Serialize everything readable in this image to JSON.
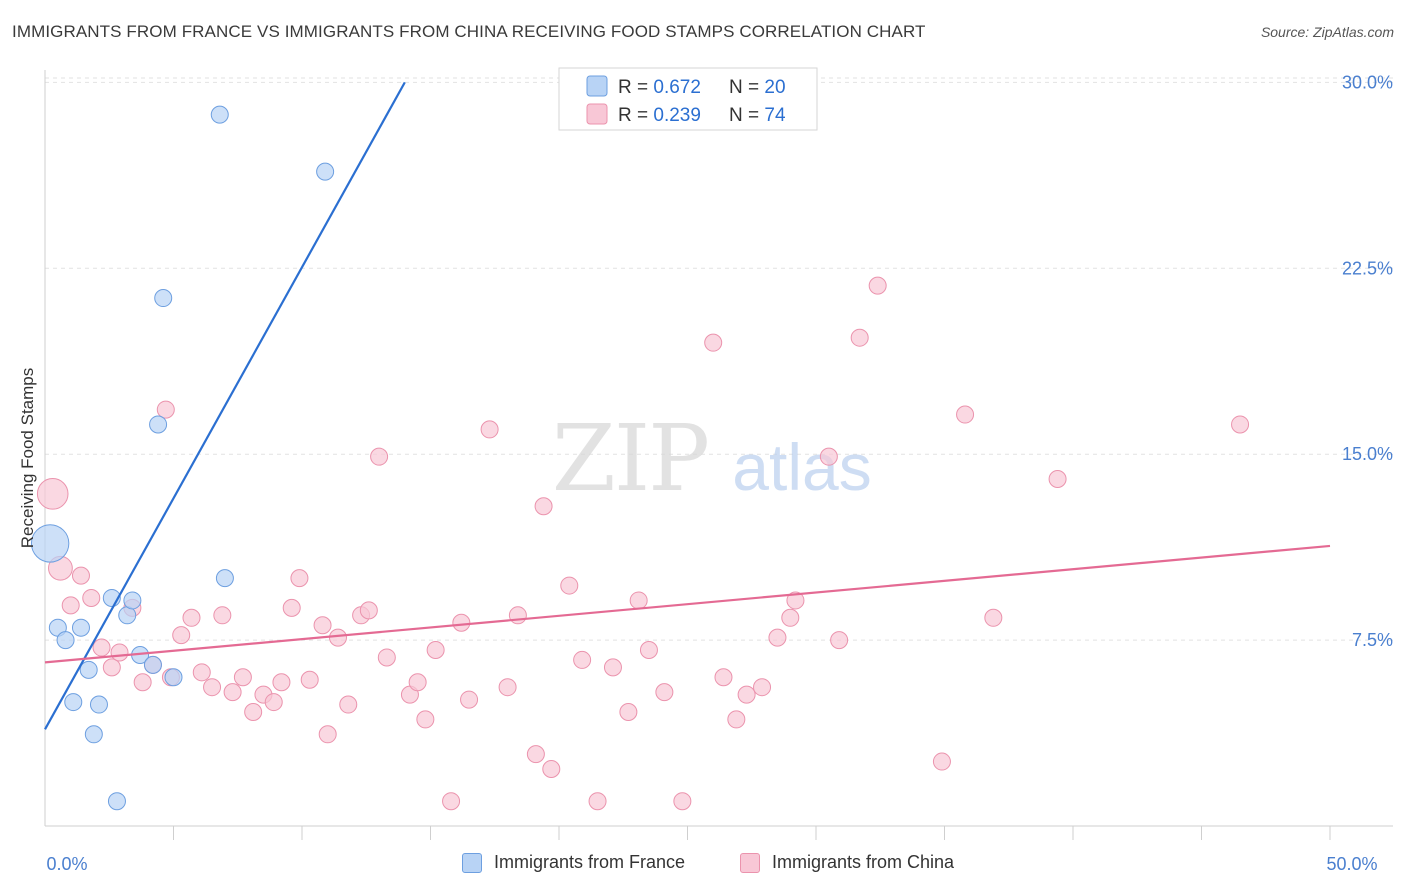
{
  "title": "IMMIGRANTS FROM FRANCE VS IMMIGRANTS FROM CHINA RECEIVING FOOD STAMPS CORRELATION CHART",
  "source": "Source: ZipAtlas.com",
  "watermark": {
    "zip": "ZIP",
    "atlas": "atlas"
  },
  "colors": {
    "blue_fill": "#b8d3f5",
    "blue_stroke": "#6d9fe0",
    "blue_line": "#2b6fd1",
    "pink_fill": "#f8c7d6",
    "pink_stroke": "#eb93ad",
    "pink_line": "#e46a93",
    "tick_label": "#4a7fcf",
    "grid": "#e2e2e2"
  },
  "legend": {
    "france": {
      "r_label": "R = ",
      "r_value": "0.672",
      "n_label": "N = ",
      "n_value": "20"
    },
    "china": {
      "r_label": "R = ",
      "r_value": "0.239",
      "n_label": "N = ",
      "n_value": "74"
    }
  },
  "bottom_legend": {
    "france": "Immigrants from France",
    "china": "Immigrants from China"
  },
  "chart_data": {
    "type": "scatter",
    "title": "IMMIGRANTS FROM FRANCE VS IMMIGRANTS FROM CHINA RECEIVING FOOD STAMPS CORRELATION CHART",
    "xlabel": "",
    "ylabel": "Receiving Food Stamps",
    "xlim": [
      0,
      50
    ],
    "ylim": [
      0,
      30.5
    ],
    "x_tick_labels": [
      {
        "value": 0,
        "label": "0.0%"
      },
      {
        "value": 50,
        "label": "50.0%"
      }
    ],
    "x_minor_ticks": [
      5,
      10,
      15,
      20,
      25,
      30,
      35,
      40,
      45,
      50
    ],
    "y_ticks": [
      {
        "value": 7.5,
        "label": "7.5%"
      },
      {
        "value": 15.0,
        "label": "15.0%"
      },
      {
        "value": 22.5,
        "label": "22.5%"
      },
      {
        "value": 30.0,
        "label": "30.0%"
      }
    ],
    "series": [
      {
        "name": "Immigrants from France",
        "color": "#b8d3f5",
        "r": 0.672,
        "n": 20,
        "trend": {
          "x0": 0,
          "y0": 3.9,
          "x1": 14.0,
          "y1": 30.0
        },
        "points": [
          {
            "x": 0.2,
            "y": 11.4,
            "s": 2.2
          },
          {
            "x": 0.5,
            "y": 8.0,
            "s": 1
          },
          {
            "x": 0.8,
            "y": 7.5,
            "s": 1
          },
          {
            "x": 1.1,
            "y": 5.0,
            "s": 1
          },
          {
            "x": 1.4,
            "y": 8.0,
            "s": 1
          },
          {
            "x": 1.7,
            "y": 6.3,
            "s": 1
          },
          {
            "x": 1.9,
            "y": 3.7,
            "s": 1
          },
          {
            "x": 2.1,
            "y": 4.9,
            "s": 1
          },
          {
            "x": 2.6,
            "y": 9.2,
            "s": 1
          },
          {
            "x": 2.8,
            "y": 1.0,
            "s": 1
          },
          {
            "x": 3.2,
            "y": 8.5,
            "s": 1
          },
          {
            "x": 3.4,
            "y": 9.1,
            "s": 1
          },
          {
            "x": 3.7,
            "y": 6.9,
            "s": 1
          },
          {
            "x": 4.2,
            "y": 6.5,
            "s": 1
          },
          {
            "x": 4.4,
            "y": 16.2,
            "s": 1
          },
          {
            "x": 4.6,
            "y": 21.3,
            "s": 1
          },
          {
            "x": 5.0,
            "y": 6.0,
            "s": 1
          },
          {
            "x": 7.0,
            "y": 10.0,
            "s": 1
          },
          {
            "x": 6.8,
            "y": 28.7,
            "s": 1
          },
          {
            "x": 10.9,
            "y": 26.4,
            "s": 1
          }
        ]
      },
      {
        "name": "Immigrants from China",
        "color": "#f8c7d6",
        "r": 0.239,
        "n": 74,
        "trend": {
          "x0": 0,
          "y0": 6.6,
          "x1": 50,
          "y1": 11.3
        },
        "points": [
          {
            "x": 0.3,
            "y": 13.4,
            "s": 1.8
          },
          {
            "x": 0.6,
            "y": 10.4,
            "s": 1.4
          },
          {
            "x": 1.0,
            "y": 8.9,
            "s": 1
          },
          {
            "x": 1.4,
            "y": 10.1,
            "s": 1
          },
          {
            "x": 1.8,
            "y": 9.2,
            "s": 1
          },
          {
            "x": 2.2,
            "y": 7.2,
            "s": 1
          },
          {
            "x": 2.6,
            "y": 6.4,
            "s": 1
          },
          {
            "x": 2.9,
            "y": 7.0,
            "s": 1
          },
          {
            "x": 3.4,
            "y": 8.8,
            "s": 1
          },
          {
            "x": 3.8,
            "y": 5.8,
            "s": 1
          },
          {
            "x": 4.2,
            "y": 6.5,
            "s": 1
          },
          {
            "x": 4.7,
            "y": 16.8,
            "s": 1
          },
          {
            "x": 4.9,
            "y": 6.0,
            "s": 1
          },
          {
            "x": 5.3,
            "y": 7.7,
            "s": 1
          },
          {
            "x": 5.7,
            "y": 8.4,
            "s": 1
          },
          {
            "x": 6.1,
            "y": 6.2,
            "s": 1
          },
          {
            "x": 6.5,
            "y": 5.6,
            "s": 1
          },
          {
            "x": 6.9,
            "y": 8.5,
            "s": 1
          },
          {
            "x": 7.3,
            "y": 5.4,
            "s": 1
          },
          {
            "x": 7.7,
            "y": 6.0,
            "s": 1
          },
          {
            "x": 8.1,
            "y": 4.6,
            "s": 1
          },
          {
            "x": 8.5,
            "y": 5.3,
            "s": 1
          },
          {
            "x": 8.9,
            "y": 5.0,
            "s": 1
          },
          {
            "x": 9.2,
            "y": 5.8,
            "s": 1
          },
          {
            "x": 9.6,
            "y": 8.8,
            "s": 1
          },
          {
            "x": 9.9,
            "y": 10.0,
            "s": 1
          },
          {
            "x": 10.3,
            "y": 5.9,
            "s": 1
          },
          {
            "x": 10.8,
            "y": 8.1,
            "s": 1
          },
          {
            "x": 11.0,
            "y": 3.7,
            "s": 1
          },
          {
            "x": 11.4,
            "y": 7.6,
            "s": 1
          },
          {
            "x": 11.8,
            "y": 4.9,
            "s": 1
          },
          {
            "x": 12.3,
            "y": 8.5,
            "s": 1
          },
          {
            "x": 12.6,
            "y": 8.7,
            "s": 1
          },
          {
            "x": 13.0,
            "y": 14.9,
            "s": 1
          },
          {
            "x": 13.3,
            "y": 6.8,
            "s": 1
          },
          {
            "x": 14.2,
            "y": 5.3,
            "s": 1
          },
          {
            "x": 14.5,
            "y": 5.8,
            "s": 1
          },
          {
            "x": 14.8,
            "y": 4.3,
            "s": 1
          },
          {
            "x": 15.2,
            "y": 7.1,
            "s": 1
          },
          {
            "x": 15.8,
            "y": 1.0,
            "s": 1
          },
          {
            "x": 16.2,
            "y": 8.2,
            "s": 1
          },
          {
            "x": 16.5,
            "y": 5.1,
            "s": 1
          },
          {
            "x": 17.3,
            "y": 16.0,
            "s": 1
          },
          {
            "x": 18.0,
            "y": 5.6,
            "s": 1
          },
          {
            "x": 18.4,
            "y": 8.5,
            "s": 1
          },
          {
            "x": 19.1,
            "y": 2.9,
            "s": 1
          },
          {
            "x": 19.4,
            "y": 12.9,
            "s": 1
          },
          {
            "x": 19.7,
            "y": 2.3,
            "s": 1
          },
          {
            "x": 20.4,
            "y": 9.7,
            "s": 1
          },
          {
            "x": 20.9,
            "y": 6.7,
            "s": 1
          },
          {
            "x": 21.5,
            "y": 1.0,
            "s": 1
          },
          {
            "x": 22.1,
            "y": 6.4,
            "s": 1
          },
          {
            "x": 22.7,
            "y": 4.6,
            "s": 1
          },
          {
            "x": 23.1,
            "y": 9.1,
            "s": 1
          },
          {
            "x": 23.5,
            "y": 7.1,
            "s": 1
          },
          {
            "x": 24.1,
            "y": 5.4,
            "s": 1
          },
          {
            "x": 24.8,
            "y": 1.0,
            "s": 1
          },
          {
            "x": 26.0,
            "y": 19.5,
            "s": 1
          },
          {
            "x": 26.4,
            "y": 6.0,
            "s": 1
          },
          {
            "x": 26.9,
            "y": 4.3,
            "s": 1
          },
          {
            "x": 27.3,
            "y": 5.3,
            "s": 1
          },
          {
            "x": 27.9,
            "y": 5.6,
            "s": 1
          },
          {
            "x": 28.5,
            "y": 7.6,
            "s": 1
          },
          {
            "x": 29.0,
            "y": 8.4,
            "s": 1
          },
          {
            "x": 29.2,
            "y": 9.1,
            "s": 1
          },
          {
            "x": 30.5,
            "y": 14.9,
            "s": 1
          },
          {
            "x": 30.9,
            "y": 7.5,
            "s": 1
          },
          {
            "x": 31.7,
            "y": 19.7,
            "s": 1
          },
          {
            "x": 32.4,
            "y": 21.8,
            "s": 1
          },
          {
            "x": 34.9,
            "y": 2.6,
            "s": 1
          },
          {
            "x": 35.8,
            "y": 16.6,
            "s": 1
          },
          {
            "x": 36.9,
            "y": 8.4,
            "s": 1
          },
          {
            "x": 39.4,
            "y": 14.0,
            "s": 1
          },
          {
            "x": 46.5,
            "y": 16.2,
            "s": 1
          }
        ]
      }
    ]
  }
}
